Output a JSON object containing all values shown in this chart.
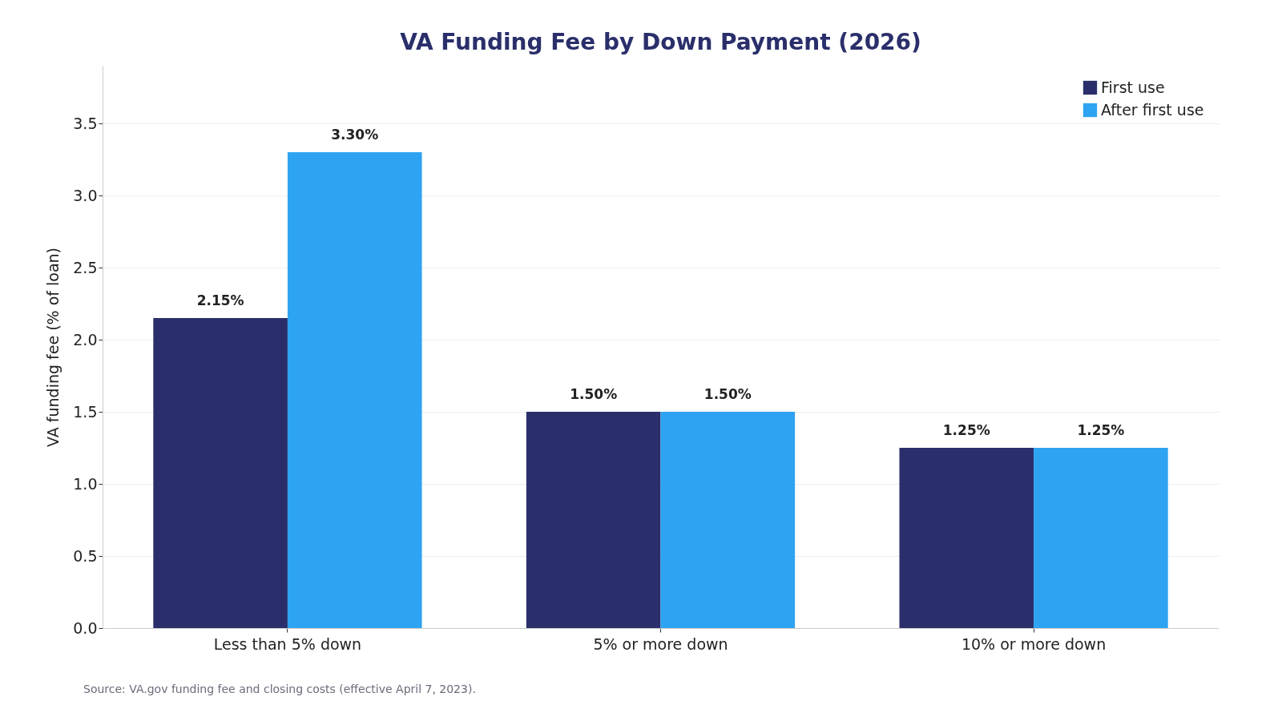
{
  "chart_data": {
    "type": "bar",
    "title": "VA Funding Fee by Down Payment (2026)",
    "ylabel": "VA funding fee (% of loan)",
    "categories": [
      "Less than 5% down",
      "5% or more down",
      "10% or more down"
    ],
    "series": [
      {
        "name": "First use",
        "color": "#2a2f6b",
        "values": [
          2.15,
          1.5,
          1.25
        ],
        "value_labels": [
          "2.15%",
          "1.50%",
          "1.25%"
        ]
      },
      {
        "name": "After first use",
        "color": "#2ea3f2",
        "values": [
          3.3,
          1.5,
          1.25
        ],
        "value_labels": [
          "3.30%",
          "1.50%",
          "1.25%"
        ]
      }
    ],
    "ylim": [
      0,
      3.9
    ],
    "yticks": [
      {
        "value": 0,
        "label": "0.0"
      },
      0.5,
      {
        "value": 1,
        "label": "1.0"
      },
      1.5,
      {
        "value": 2,
        "label": "2.0"
      },
      2.5,
      {
        "value": 3,
        "label": "3.0"
      },
      3.5
    ],
    "grid": "y",
    "legend": "top right",
    "annotations": [
      "Source: VA.gov funding fee and closing costs (effective April 7, 2023)."
    ]
  }
}
